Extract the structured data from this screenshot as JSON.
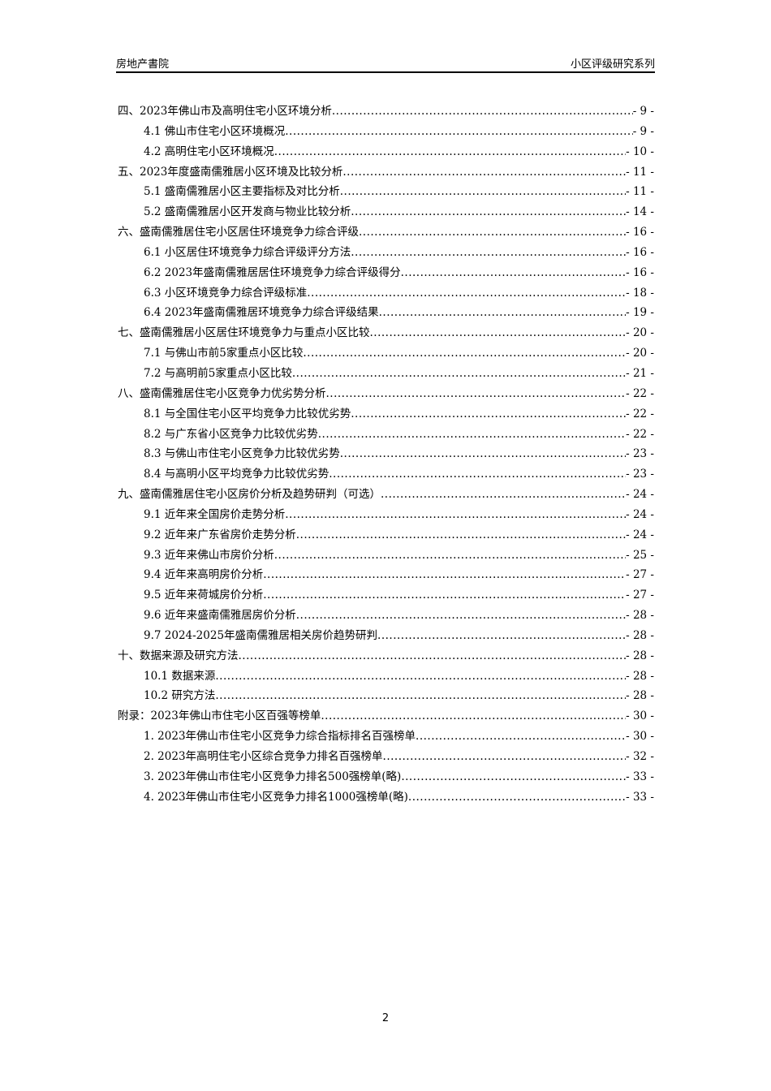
{
  "header": {
    "left": "房地产書院",
    "right": "小区评级研究系列"
  },
  "toc": [
    {
      "level": 1,
      "title": "四、2023年佛山市及高明住宅小区环境分析",
      "page": "- 9 -"
    },
    {
      "level": 2,
      "title": "4.1 佛山市住宅小区环境概况",
      "page": "- 9 -"
    },
    {
      "level": 2,
      "title": "4.2 高明住宅小区环境概况",
      "page": "- 10 -"
    },
    {
      "level": 1,
      "title": "五、2023年度盛南儒雅居小区环境及比较分析",
      "page": "- 11 -"
    },
    {
      "level": 2,
      "title": "5.1 盛南儒雅居小区主要指标及对比分析",
      "page": "- 11 -"
    },
    {
      "level": 2,
      "title": "5.2 盛南儒雅居小区开发商与物业比较分析",
      "page": "- 14 -"
    },
    {
      "level": 1,
      "title": "六、盛南儒雅居住宅小区居住环境竞争力综合评级",
      "page": "- 16 -"
    },
    {
      "level": 2,
      "title": "6.1 小区居住环境竞争力综合评级评分方法",
      "page": "- 16 -"
    },
    {
      "level": 2,
      "title": "6.2 2023年盛南儒雅居居住环境竞争力综合评级得分",
      "page": "- 16 -"
    },
    {
      "level": 2,
      "title": "6.3 小区环境竞争力综合评级标准",
      "page": "- 18 -"
    },
    {
      "level": 2,
      "title": "6.4 2023年盛南儒雅居环境竞争力综合评级结果",
      "page": "- 19 -"
    },
    {
      "level": 1,
      "title": "七、盛南儒雅居小区居住环境竞争力与重点小区比较",
      "page": "- 20 -"
    },
    {
      "level": 2,
      "title": "7.1 与佛山市前5家重点小区比较",
      "page": "- 20 -"
    },
    {
      "level": 2,
      "title": "7.2 与高明前5家重点小区比较",
      "page": "- 21 -"
    },
    {
      "level": 1,
      "title": "八、盛南儒雅居住宅小区竞争力优劣势分析",
      "page": "- 22 -"
    },
    {
      "level": 2,
      "title": "8.1 与全国住宅小区平均竞争力比较优劣势",
      "page": "- 22 -"
    },
    {
      "level": 2,
      "title": "8.2 与广东省小区竞争力比较优劣势",
      "page": "- 22 -"
    },
    {
      "level": 2,
      "title": "8.3 与佛山市住宅小区竞争力比较优劣势",
      "page": "- 23 -"
    },
    {
      "level": 2,
      "title": "8.4 与高明小区平均竞争力比较优劣势",
      "page": "- 23 -"
    },
    {
      "level": 1,
      "title": "九、盛南儒雅居住宅小区房价分析及趋势研判（可选）",
      "page": "- 24 -"
    },
    {
      "level": 2,
      "title": "9.1 近年来全国房价走势分析",
      "page": "- 24 -"
    },
    {
      "level": 2,
      "title": "9.2 近年来广东省房价走势分析",
      "page": "- 24 -"
    },
    {
      "level": 2,
      "title": "9.3 近年来佛山市房价分析",
      "page": "- 25 -"
    },
    {
      "level": 2,
      "title": "9.4 近年来高明房价分析",
      "page": "- 27 -"
    },
    {
      "level": 2,
      "title": "9.5 近年来荷城房价分析",
      "page": "- 27 -"
    },
    {
      "level": 2,
      "title": "9.6 近年来盛南儒雅居房价分析",
      "page": "- 28 -"
    },
    {
      "level": 2,
      "title": "9.7 2024-2025年盛南儒雅居相关房价趋势研判",
      "page": "- 28 -"
    },
    {
      "level": 1,
      "title": "十、数据来源及研究方法",
      "page": "- 28 -"
    },
    {
      "level": 2,
      "title": "10.1 数据来源",
      "page": "- 28 -"
    },
    {
      "level": 2,
      "title": "10.2 研究方法",
      "page": "- 28 -"
    },
    {
      "level": 1,
      "title": "附录：2023年佛山市住宅小区百强等榜单",
      "page": "- 30 -"
    },
    {
      "level": 2,
      "title": "1.  2023年佛山市住宅小区竞争力综合指标排名百强榜单",
      "page": "- 30 -"
    },
    {
      "level": 2,
      "title": "2.  2023年高明住宅小区综合竞争力排名百强榜单",
      "page": "- 32 -"
    },
    {
      "level": 2,
      "title": "3.  2023年佛山市住宅小区竞争力排名500强榜单(略)",
      "page": "- 33 -"
    },
    {
      "level": 2,
      "title": "4.  2023年佛山市住宅小区竞争力排名1000强榜单(略)",
      "page": "- 33 -"
    }
  ],
  "page_number": "2"
}
